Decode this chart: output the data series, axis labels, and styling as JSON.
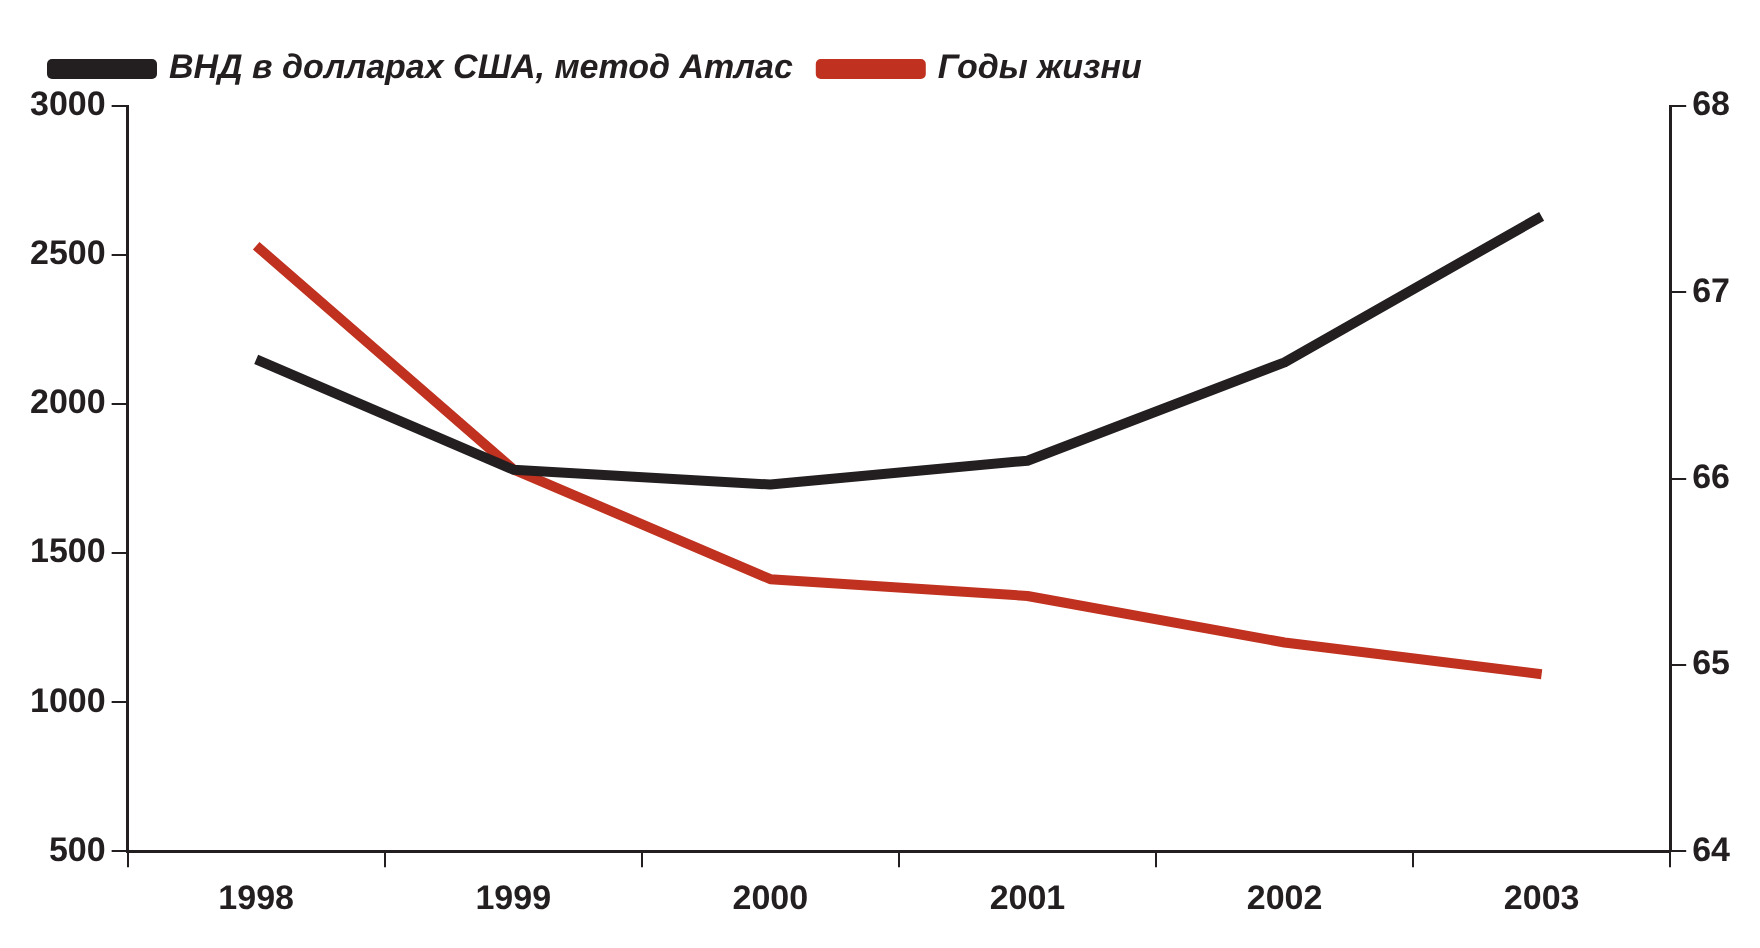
{
  "chart_data": {
    "type": "line",
    "categories": [
      "1998",
      "1999",
      "2000",
      "2001",
      "2002",
      "2003"
    ],
    "series": [
      {
        "name": "ВНД в долларах США, метод Атлас",
        "color": "#231f20",
        "values": [
          2150,
          1780,
          1730,
          1810,
          2140,
          2630
        ]
      },
      {
        "name": "Годы жизни",
        "color": "#c0311f",
        "axis": "y2",
        "values": [
          67.25,
          66.05,
          65.46,
          65.37,
          65.12,
          64.95
        ]
      }
    ],
    "ylim": [
      500,
      3000
    ],
    "yticks": [
      500,
      1000,
      1500,
      2000,
      2500,
      3000
    ],
    "y2lim": [
      64,
      68
    ],
    "y2ticks": [
      64,
      65,
      66,
      67,
      68
    ],
    "grid": false,
    "legend": "top",
    "marker": "none",
    "line_style": "solid"
  }
}
